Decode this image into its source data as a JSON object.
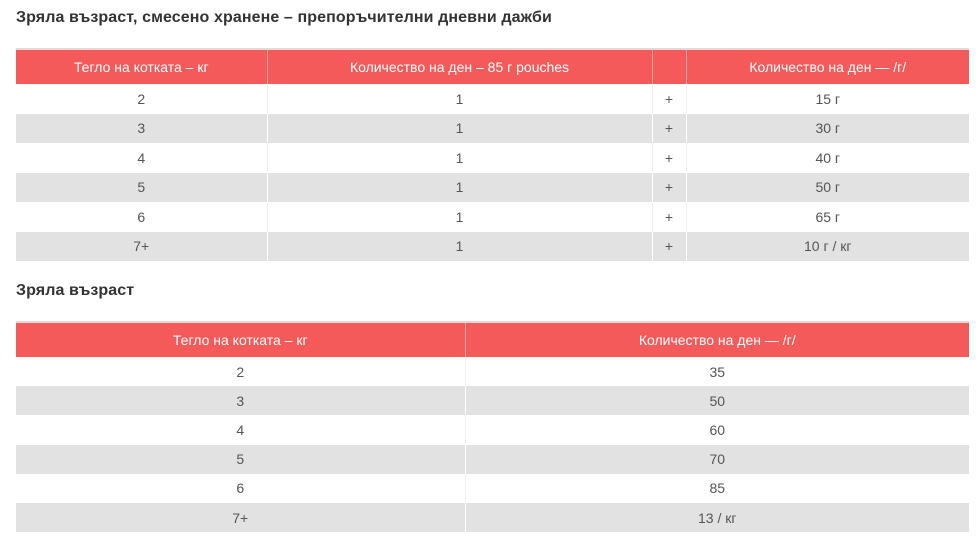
{
  "mixed": {
    "title": "Зряла възраст, смесено хранене – препоръчителни дневни дажби",
    "headers": [
      "Тегло на котката – кг",
      "Количество на ден – 85 г pouches",
      "",
      "Количество на ден — /г/"
    ],
    "rows": [
      [
        "2",
        "1",
        "+",
        "15 г"
      ],
      [
        "3",
        "1",
        "+",
        "30 г"
      ],
      [
        "4",
        "1",
        "+",
        "40 г"
      ],
      [
        "5",
        "1",
        "+",
        "50 г"
      ],
      [
        "6",
        "1",
        "+",
        "65 г"
      ],
      [
        "7+",
        "1",
        "+",
        "10 г / кг"
      ]
    ]
  },
  "dry": {
    "title": "Зряла възраст",
    "headers": [
      "Тегло на котката – кг",
      "Количество на ден — /г/"
    ],
    "rows": [
      [
        "2",
        "35"
      ],
      [
        "3",
        "50"
      ],
      [
        "4",
        "60"
      ],
      [
        "5",
        "70"
      ],
      [
        "6",
        "85"
      ],
      [
        "7+",
        "13 / кг"
      ]
    ]
  }
}
